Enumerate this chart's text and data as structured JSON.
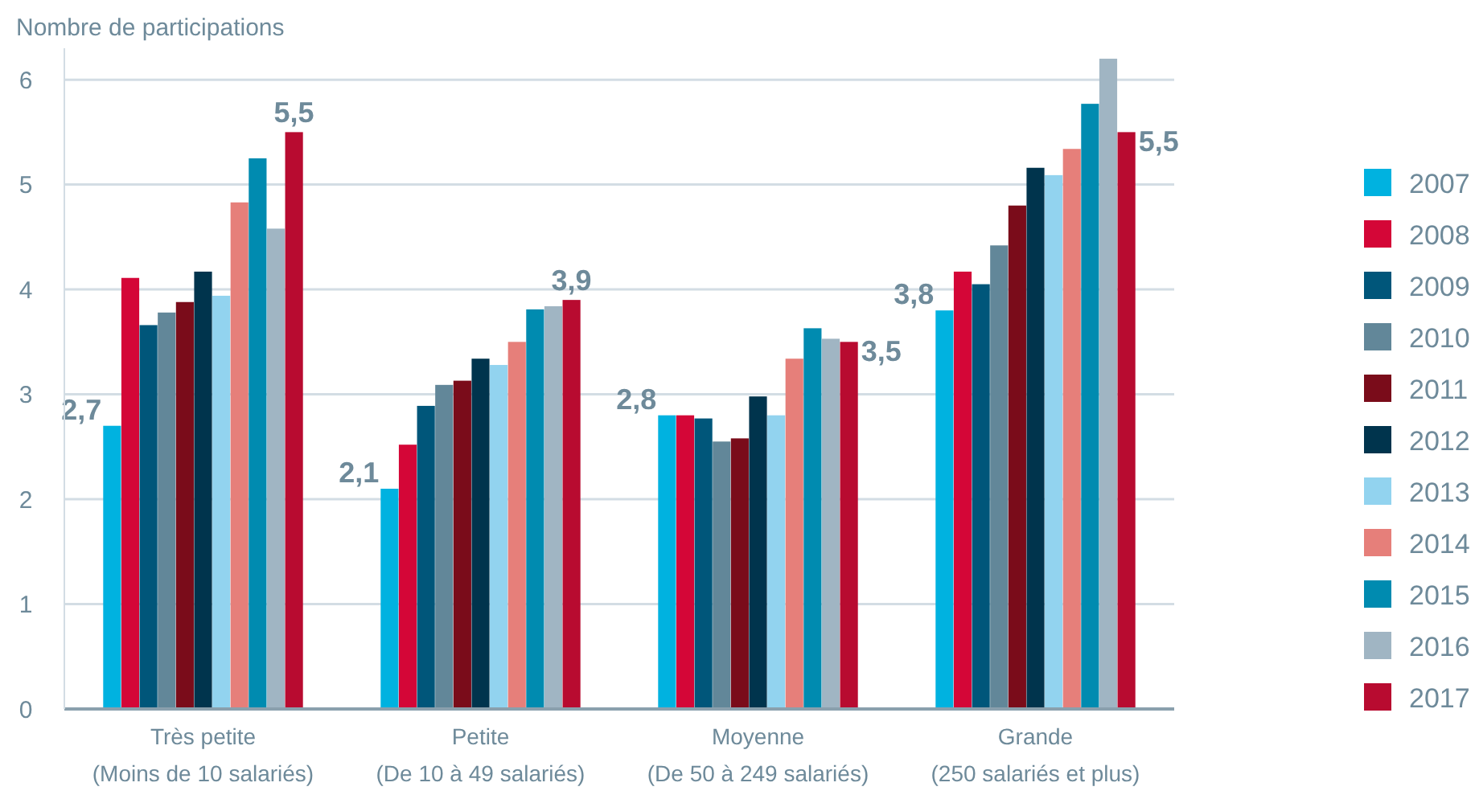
{
  "chart_data": {
    "type": "bar",
    "ylabel": "Nombre de participations",
    "categories": [
      "Très petite\n(Moins de 10 salariés)",
      "Petite\n(De 10 à 49 salariés)",
      "Moyenne\n(De 50 à 249 salariés)",
      "Grande\n(250 salariés et plus)"
    ],
    "ylim": [
      0,
      6.3
    ],
    "yticks": [
      0,
      1,
      2,
      3,
      4,
      5,
      6
    ],
    "grid": "y",
    "legend": "right",
    "series": [
      {
        "name": "2007",
        "color": "#00b2e0",
        "values": [
          2.7,
          2.1,
          2.8,
          3.8
        ],
        "value_labels": [
          "2,7",
          "2,1",
          "2,8",
          "3,8"
        ]
      },
      {
        "name": "2008",
        "color": "#d40637",
        "values": [
          4.11,
          2.52,
          2.8,
          4.17
        ]
      },
      {
        "name": "2009",
        "color": "#00567a",
        "values": [
          3.66,
          2.89,
          2.77,
          4.05
        ]
      },
      {
        "name": "2010",
        "color": "#628799",
        "values": [
          3.78,
          3.09,
          2.55,
          4.42
        ]
      },
      {
        "name": "2011",
        "color": "#7a0c1a",
        "values": [
          3.88,
          3.13,
          2.58,
          4.8
        ]
      },
      {
        "name": "2012",
        "color": "#00344d",
        "values": [
          4.17,
          3.34,
          2.98,
          5.16
        ]
      },
      {
        "name": "2013",
        "color": "#92d3ef",
        "values": [
          3.94,
          3.28,
          2.8,
          5.09
        ]
      },
      {
        "name": "2014",
        "color": "#e67f7a",
        "values": [
          4.83,
          3.5,
          3.34,
          5.34
        ]
      },
      {
        "name": "2015",
        "color": "#008bb0",
        "values": [
          5.25,
          3.81,
          3.63,
          5.77
        ]
      },
      {
        "name": "2016",
        "color": "#a0b5c3",
        "values": [
          4.58,
          3.84,
          3.53,
          6.2
        ]
      },
      {
        "name": "2017",
        "color": "#b80b30",
        "values": [
          5.5,
          3.9,
          3.5,
          5.5
        ],
        "value_labels": [
          "5,5",
          "3,9",
          "3,5",
          "5,5"
        ]
      }
    ]
  }
}
